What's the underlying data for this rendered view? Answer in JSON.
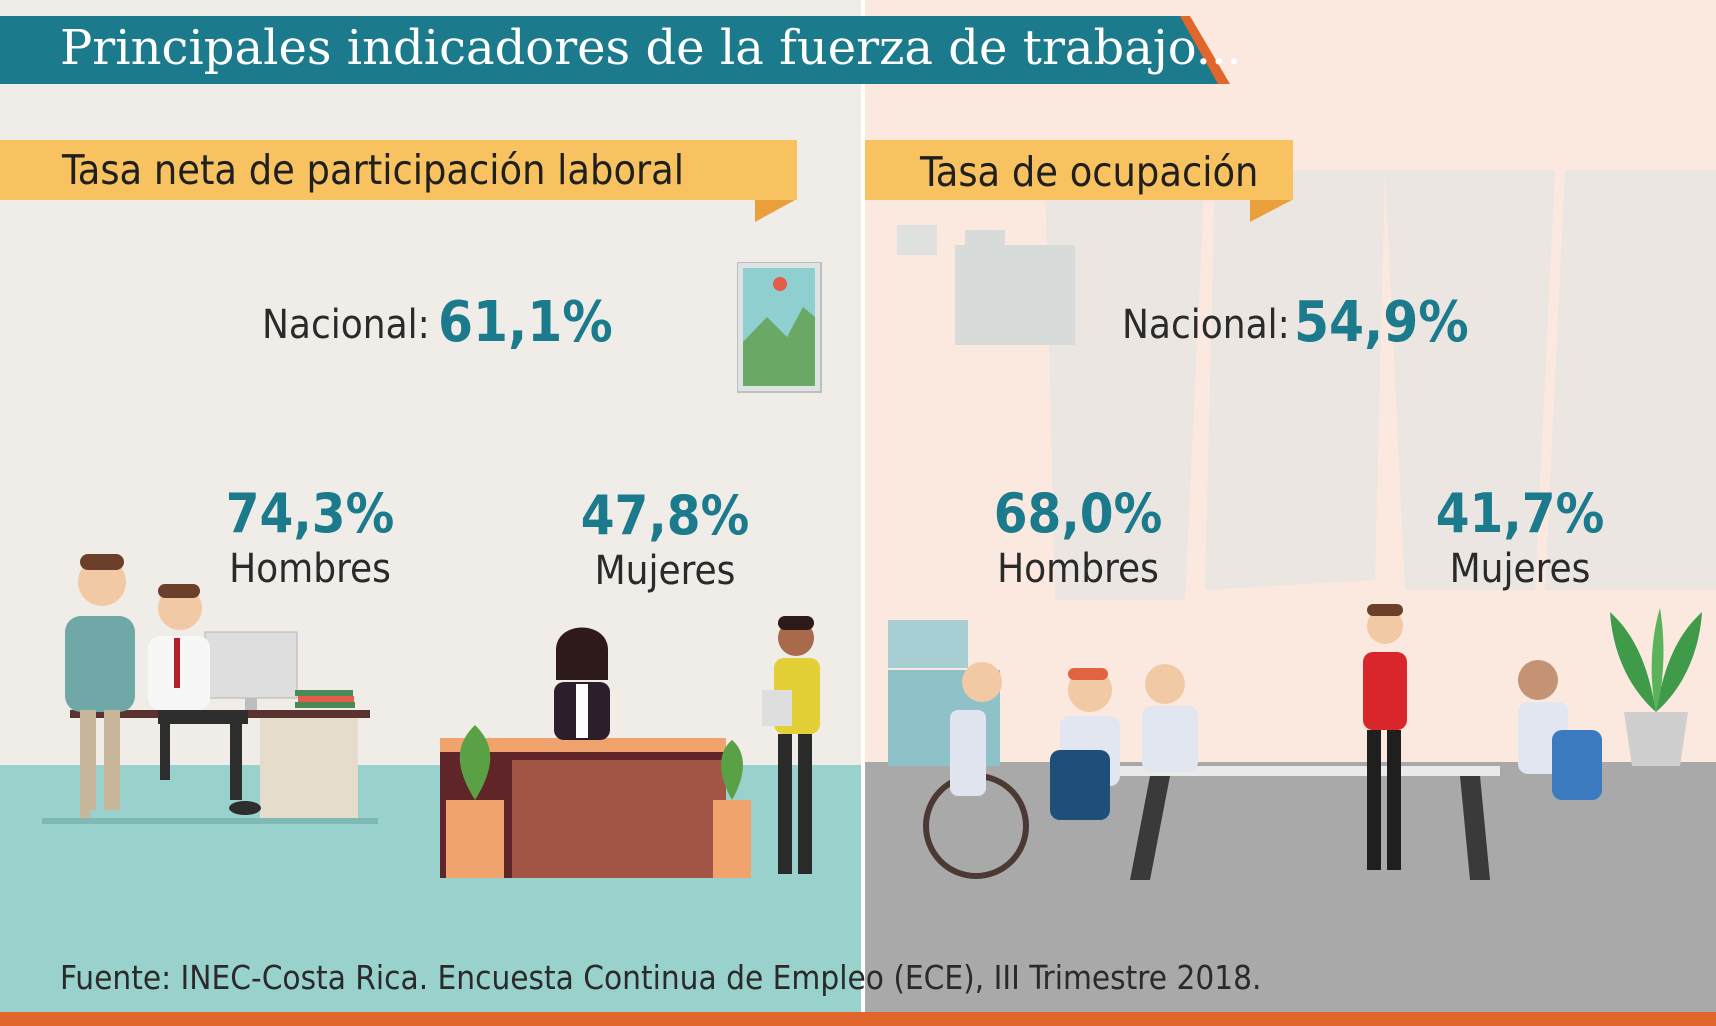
{
  "title": "Principales indicadores de la fuerza de trabajo...",
  "left_section": {
    "heading": "Tasa neta de participación laboral",
    "national_label": "Nacional:",
    "national_value": "61,1%",
    "men_value": "74,3%",
    "men_label": "Hombres",
    "women_value": "47,8%",
    "women_label": "Mujeres"
  },
  "right_section": {
    "heading": "Tasa de ocupación",
    "national_label": "Nacional:",
    "national_value": "54,9%",
    "men_value": "68,0%",
    "men_label": "Hombres",
    "women_value": "41,7%",
    "women_label": "Mujeres"
  },
  "source": "Fuente: INEC-Costa Rica. Encuesta Continua de Empleo (ECE), III Trimestre 2018.",
  "colors": {
    "title_banner": "#1b7a8c",
    "title_accent": "#e0662b",
    "ribbon": "#f7c25f",
    "ribbon_fold": "#eaa03a",
    "value_teal": "#1b7a8c",
    "left_floor": "#99d2cc",
    "right_floor": "#a9a9a9"
  }
}
